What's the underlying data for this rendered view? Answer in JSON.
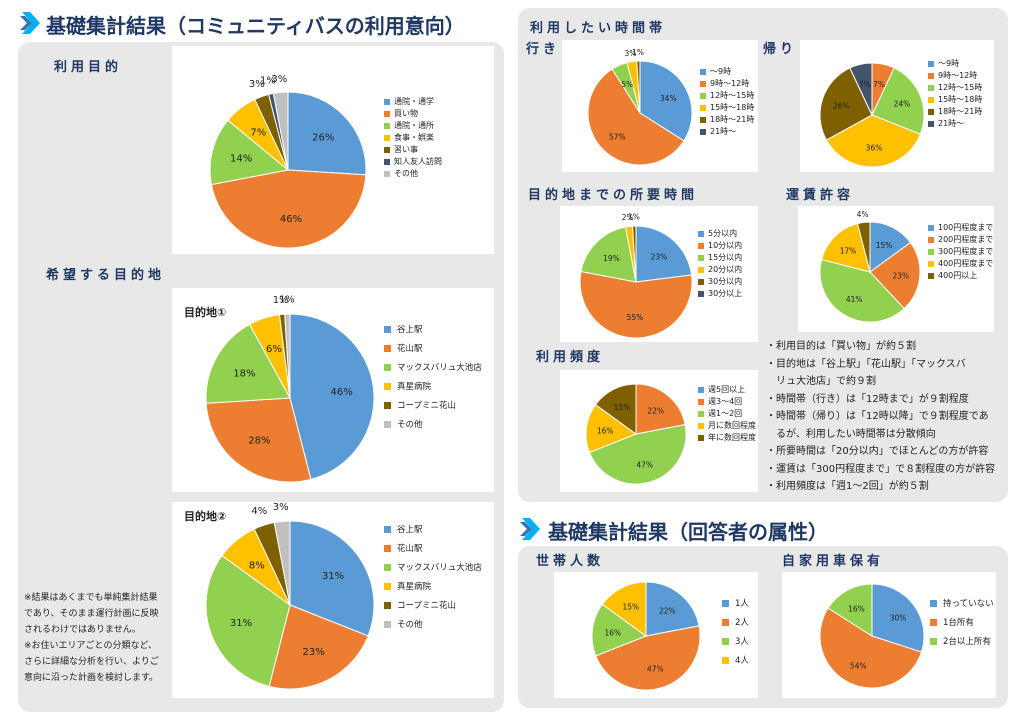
{
  "left_title": "基礎集計結果（コミュニティバスの利用意向）",
  "right_subtitle": "基礎集計結果（回答者の属性）",
  "sections": {
    "purpose": "利用目的",
    "desired": "希望する目的地",
    "time_band": "利用したい時間帯",
    "go": "行き",
    "return": "帰り",
    "travel_time": "目的地までの所要時間",
    "fare": "運賃許容",
    "frequency": "利用頻度",
    "household": "世帯人数",
    "car": "自家用車保有"
  },
  "colors": {
    "blue": "#5b9bd5",
    "orange": "#ed7d31",
    "green": "#92d050",
    "yellow": "#ffc000",
    "brown": "#7f6000",
    "navy": "#44546a",
    "gray": "#bfbfbf",
    "title": "#1f3864",
    "accent": "#2e75b6",
    "accent2": "#00b0f0"
  },
  "notes": [
    "・利用目的は「買い物」が約５割",
    "・目的地は「谷上駅」「花山駅」「マックスバ",
    "　リュ大池店」で約９割",
    "・時間帯（行き）は「12時まで」が９割程度",
    "・時間帯（帰り）は「12時以降」で９割程度であ",
    "　るが、利用したい時間帯は分散傾向",
    "・所要時間は「20分以内」でほとんどの方が許容",
    "・運賃は「300円程度まで」で８割程度の方が許容",
    "・利用頻度は「週1～2回」が約５割"
  ],
  "footnote": [
    "※結果はあくまでも単純集計結果",
    "であり、そのまま運行計画に反映",
    "されるわけではありません。",
    "※お住いエリアごとの分類など、",
    "さらに詳細な分析を行い、よりご",
    "意向に沿った計画を検討します。"
  ],
  "chart_data": [
    {
      "id": "purpose",
      "type": "pie",
      "title": "",
      "categories": [
        "通院・通学",
        "買い物",
        "通院・通所",
        "食事・娯楽",
        "習い事",
        "知人友人訪問",
        "その他"
      ],
      "values": [
        26,
        46,
        14,
        7,
        3,
        1,
        3
      ],
      "labels": [
        "26%",
        "46%",
        "14%",
        "7%",
        "3%",
        "1%",
        "3%"
      ],
      "colors": [
        "#5b9bd5",
        "#ed7d31",
        "#92d050",
        "#ffc000",
        "#7f6000",
        "#44546a",
        "#bfbfbf"
      ]
    },
    {
      "id": "dest1",
      "type": "pie",
      "title": "目的地①",
      "categories": [
        "谷上駅",
        "花山駅",
        "マックスバリュ大池店",
        "真星病院",
        "コープミニ花山",
        "その他"
      ],
      "values": [
        46,
        28,
        18,
        6,
        1,
        1
      ],
      "labels": [
        "46%",
        "28%",
        "18%",
        "6%",
        "1%",
        "1%"
      ],
      "colors": [
        "#5b9bd5",
        "#ed7d31",
        "#92d050",
        "#ffc000",
        "#7f6000",
        "#bfbfbf"
      ]
    },
    {
      "id": "dest2",
      "type": "pie",
      "title": "目的地②",
      "categories": [
        "谷上駅",
        "花山駅",
        "マックスバリュ大池店",
        "真星病院",
        "コープミニ花山",
        "その他"
      ],
      "values": [
        31,
        23,
        31,
        8,
        4,
        3
      ],
      "labels": [
        "31%",
        "23%",
        "31%",
        "8%",
        "4%",
        "3%"
      ],
      "colors": [
        "#5b9bd5",
        "#ed7d31",
        "#92d050",
        "#ffc000",
        "#7f6000",
        "#bfbfbf"
      ]
    },
    {
      "id": "go",
      "type": "pie",
      "title": "",
      "categories": [
        "～9時",
        "9時～12時",
        "12時～15時",
        "15時～18時",
        "18時～21時",
        "21時～"
      ],
      "values": [
        34,
        57,
        5,
        3,
        1,
        0
      ],
      "labels": [
        "34%",
        "57%",
        "5%",
        "3%",
        "1%",
        ""
      ],
      "colors": [
        "#5b9bd5",
        "#ed7d31",
        "#92d050",
        "#ffc000",
        "#7f6000",
        "#44546a"
      ]
    },
    {
      "id": "return",
      "type": "pie",
      "title": "",
      "categories": [
        "～9時",
        "9時～12時",
        "12時～15時",
        "15時～18時",
        "18時～21時",
        "21時～"
      ],
      "values": [
        0,
        7,
        24,
        36,
        26,
        7
      ],
      "labels": [
        "",
        "7%",
        "24%",
        "36%",
        "26%",
        "7%"
      ],
      "colors": [
        "#5b9bd5",
        "#ed7d31",
        "#92d050",
        "#ffc000",
        "#7f6000",
        "#44546a"
      ]
    },
    {
      "id": "travel",
      "type": "pie",
      "title": "",
      "categories": [
        "5分以内",
        "10分以内",
        "15分以内",
        "20分以内",
        "30分以内",
        "30分以上"
      ],
      "values": [
        23,
        55,
        19,
        2,
        1,
        0
      ],
      "labels": [
        "23%",
        "55%",
        "19%",
        "2%",
        "1%",
        ""
      ],
      "colors": [
        "#5b9bd5",
        "#ed7d31",
        "#92d050",
        "#ffc000",
        "#7f6000",
        "#44546a"
      ]
    },
    {
      "id": "fare",
      "type": "pie",
      "title": "",
      "categories": [
        "100円程度まで",
        "200円程度まで",
        "300円程度まで",
        "400円程度まで",
        "400円以上"
      ],
      "values": [
        15,
        23,
        41,
        17,
        4
      ],
      "labels": [
        "15%",
        "23%",
        "41%",
        "17%",
        "4%"
      ],
      "colors": [
        "#5b9bd5",
        "#ed7d31",
        "#92d050",
        "#ffc000",
        "#7f6000"
      ]
    },
    {
      "id": "freq",
      "type": "pie",
      "title": "",
      "categories": [
        "週5回以上",
        "週3～4回",
        "週1～2回",
        "月に数回程度",
        "年に数回程度"
      ],
      "values": [
        0,
        22,
        47,
        16,
        15
      ],
      "labels": [
        "",
        "22%",
        "47%",
        "16%",
        "15%"
      ],
      "colors": [
        "#5b9bd5",
        "#ed7d31",
        "#92d050",
        "#ffc000",
        "#7f6000"
      ]
    },
    {
      "id": "household",
      "type": "pie",
      "title": "",
      "categories": [
        "1人",
        "2人",
        "3人",
        "4人"
      ],
      "values": [
        22,
        47,
        16,
        15
      ],
      "labels": [
        "22%",
        "47%",
        "16%",
        "15%"
      ],
      "colors": [
        "#5b9bd5",
        "#ed7d31",
        "#92d050",
        "#ffc000"
      ]
    },
    {
      "id": "car",
      "type": "pie",
      "title": "",
      "categories": [
        "持っていない",
        "1台所有",
        "2台以上所有"
      ],
      "values": [
        30,
        54,
        16
      ],
      "labels": [
        "30%",
        "54%",
        "16%"
      ],
      "colors": [
        "#5b9bd5",
        "#ed7d31",
        "#92d050"
      ]
    }
  ]
}
